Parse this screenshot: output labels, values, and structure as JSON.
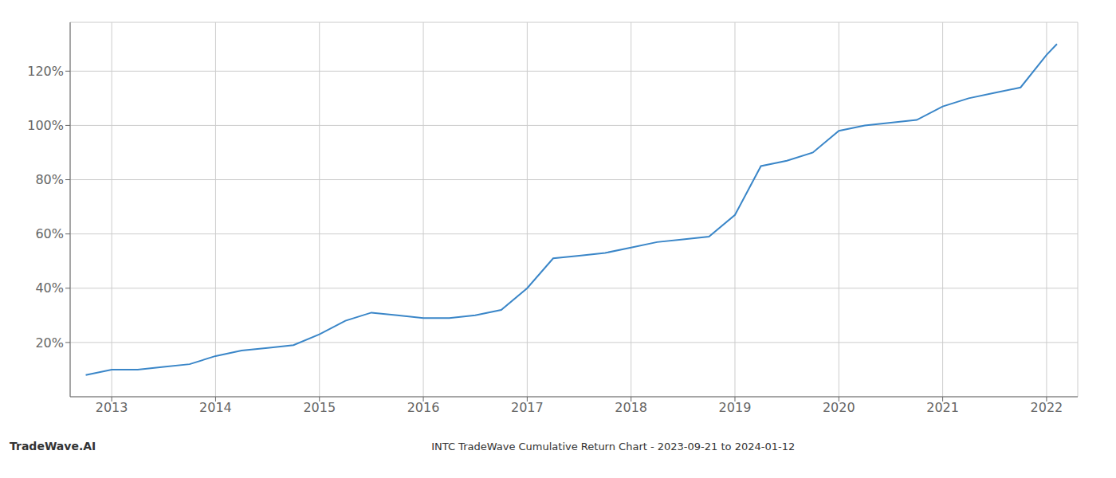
{
  "chart_data": {
    "type": "line",
    "title": "INTC TradeWave Cumulative Return Chart - 2023-09-21 to 2024-01-12",
    "annotations": [
      "TradeWave.AI"
    ],
    "x": [
      2012.75,
      2013.0,
      2013.25,
      2013.5,
      2013.75,
      2014.0,
      2014.25,
      2014.5,
      2014.75,
      2015.0,
      2015.25,
      2015.5,
      2015.75,
      2016.0,
      2016.25,
      2016.5,
      2016.75,
      2017.0,
      2017.25,
      2017.5,
      2017.75,
      2018.0,
      2018.25,
      2018.5,
      2018.75,
      2019.0,
      2019.25,
      2019.5,
      2019.75,
      2020.0,
      2020.25,
      2020.5,
      2020.75,
      2021.0,
      2021.25,
      2021.5,
      2021.75,
      2022.0,
      2022.1
    ],
    "values": [
      8,
      10,
      10,
      11,
      12,
      15,
      17,
      18,
      19,
      23,
      28,
      31,
      30,
      29,
      29,
      30,
      32,
      40,
      51,
      52,
      53,
      55,
      57,
      58,
      59,
      67,
      85,
      87,
      90,
      98,
      100,
      101,
      102,
      107,
      110,
      112,
      114,
      126,
      130
    ],
    "color": "#3a86c8",
    "xlim": [
      2012.6,
      2022.3
    ],
    "ylim": [
      0,
      138
    ],
    "xticks": [
      2013,
      2014,
      2015,
      2016,
      2017,
      2018,
      2019,
      2020,
      2021,
      2022
    ],
    "yticks": [
      {
        "value": 20,
        "label": "20%"
      },
      {
        "value": 40,
        "label": "40%"
      },
      {
        "value": 60,
        "label": "60%"
      },
      {
        "value": 80,
        "label": "80%"
      },
      {
        "value": 100,
        "label": "100%"
      },
      {
        "value": 120,
        "label": "120%"
      }
    ],
    "grid": true
  }
}
